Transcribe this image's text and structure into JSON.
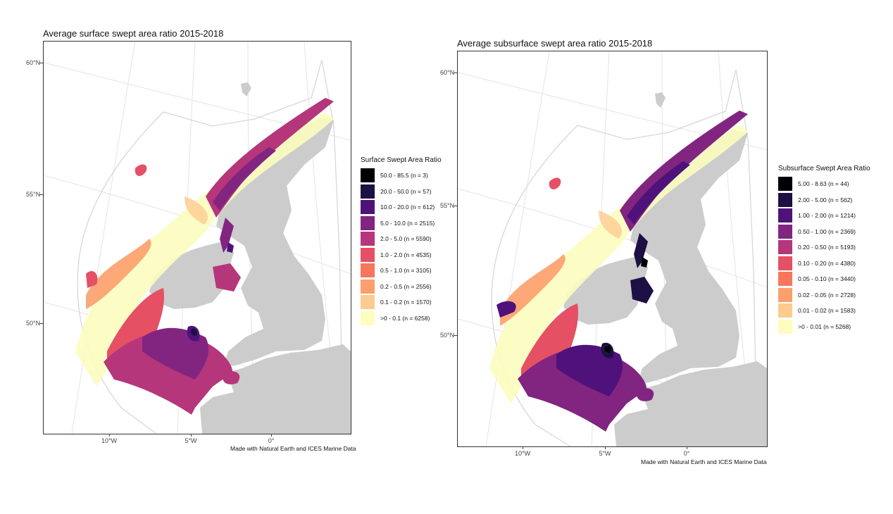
{
  "maps": [
    {
      "title": "Average surface swept area ratio 2015-2018",
      "caption": "Made with Natural Earth and ICES Marine Data",
      "lat_labels": [
        "60°N",
        "55°N",
        "50°N"
      ],
      "lon_labels": [
        "10°W",
        "5°W",
        "0°"
      ],
      "legend": {
        "title": "Surface Swept Area Ratio",
        "items": [
          {
            "label": "50.0 - 85.5 (n = 3)",
            "color": "#000004"
          },
          {
            "label": "20.0 - 50.0 (n = 57)",
            "color": "#1c1044"
          },
          {
            "label": "10.0 - 20.0 (n = 612)",
            "color": "#4f127b"
          },
          {
            "label": "5.0 - 10.0 (n = 2515)",
            "color": "#812581"
          },
          {
            "label": "2.0 - 5.0 (n = 5590)",
            "color": "#b5367a"
          },
          {
            "label": "1.0 - 2.0 (n = 4535)",
            "color": "#e55064"
          },
          {
            "label": "0.5 - 1.0 (n = 3105)",
            "color": "#f8765c"
          },
          {
            "label": "0.2 - 0.5 (n = 2556)",
            "color": "#fd9f6c"
          },
          {
            "label": "0.1 - 0.2 (n = 1570)",
            "color": "#fecb8f"
          },
          {
            "label": ">0 - 0.1 (n = 6258)",
            "color": "#fcfdbf"
          }
        ]
      }
    },
    {
      "title": "Average subsurface swept area ratio 2015-2018",
      "caption": "Made with Natural Earth and ICES Marine Data",
      "lat_labels": [
        "60°N",
        "55°N",
        "50°N"
      ],
      "lon_labels": [
        "10°W",
        "5°W",
        "0°"
      ],
      "legend": {
        "title": "Subsurface Swept Area Ratio",
        "items": [
          {
            "label": "5.00 - 8.63 (n = 44)",
            "color": "#000004"
          },
          {
            "label": "2.00 - 5.00 (n = 562)",
            "color": "#1c1044"
          },
          {
            "label": "1.00 - 2.00 (n = 1214)",
            "color": "#4f127b"
          },
          {
            "label": "0.50 - 1.00 (n = 2369)",
            "color": "#812581"
          },
          {
            "label": "0.20 - 0.50 (n = 5193)",
            "color": "#b5367a"
          },
          {
            "label": "0.10 - 0.20 (n = 4380)",
            "color": "#e55064"
          },
          {
            "label": "0.05 - 0.10 (n = 3440)",
            "color": "#f8765c"
          },
          {
            "label": "0.02 - 0.05 (n = 2728)",
            "color": "#fd9f6c"
          },
          {
            "label": "0.01 - 0.02 (n = 1583)",
            "color": "#fecb8f"
          },
          {
            "label": ">0 - 0.01 (n = 5268)",
            "color": "#fcfdbf"
          }
        ]
      }
    }
  ],
  "colors": {
    "land": "#cccccc",
    "graticule": "#e4e4e4",
    "boundary": "#d9d9d9"
  }
}
